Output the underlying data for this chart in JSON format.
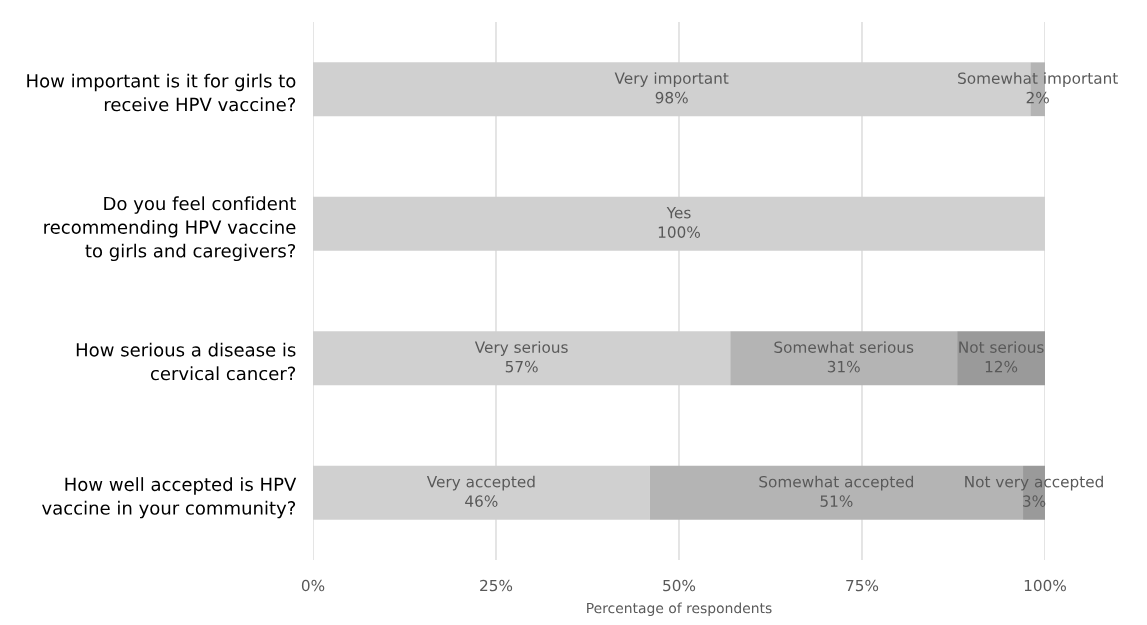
{
  "chart_data": {
    "type": "bar",
    "orientation": "horizontal",
    "stacked": true,
    "xlabel": "Percentage of respondents",
    "categories": [
      "How important is it for girls to\nreceive HPV vaccine?",
      "Do you feel confident\nrecommending HPV vaccine\nto girls and caregivers?",
      "How serious a disease is\ncervical cancer?",
      "How well accepted is HPV\nvaccine in your community?"
    ],
    "series": [
      {
        "color": "#d0d0d0",
        "values": [
          98,
          100,
          57,
          46
        ],
        "value_labels": [
          "Very important\n98%",
          "Yes\n100%",
          "Very serious\n57%",
          "Very accepted\n46%"
        ]
      },
      {
        "color": "#b4b4b4",
        "values": [
          2,
          null,
          31,
          51
        ],
        "value_labels": [
          "Somewhat important\n2%",
          null,
          "Somewhat serious\n31%",
          "Somewhat accepted\n51%"
        ]
      },
      {
        "color": "#9a9a9a",
        "values": [
          null,
          null,
          12,
          3
        ],
        "value_labels": [
          null,
          null,
          "Not serious\n12%",
          "Not very accepted\n3%"
        ]
      }
    ],
    "xlim": [
      0,
      100
    ],
    "xticks": [
      {
        "value": 0,
        "label": "0%"
      },
      {
        "value": 25,
        "label": "25%"
      },
      {
        "value": 50,
        "label": "50%"
      },
      {
        "value": 75,
        "label": "75%"
      },
      {
        "value": 100,
        "label": "100%"
      }
    ],
    "grid": "x",
    "legend": false
  }
}
